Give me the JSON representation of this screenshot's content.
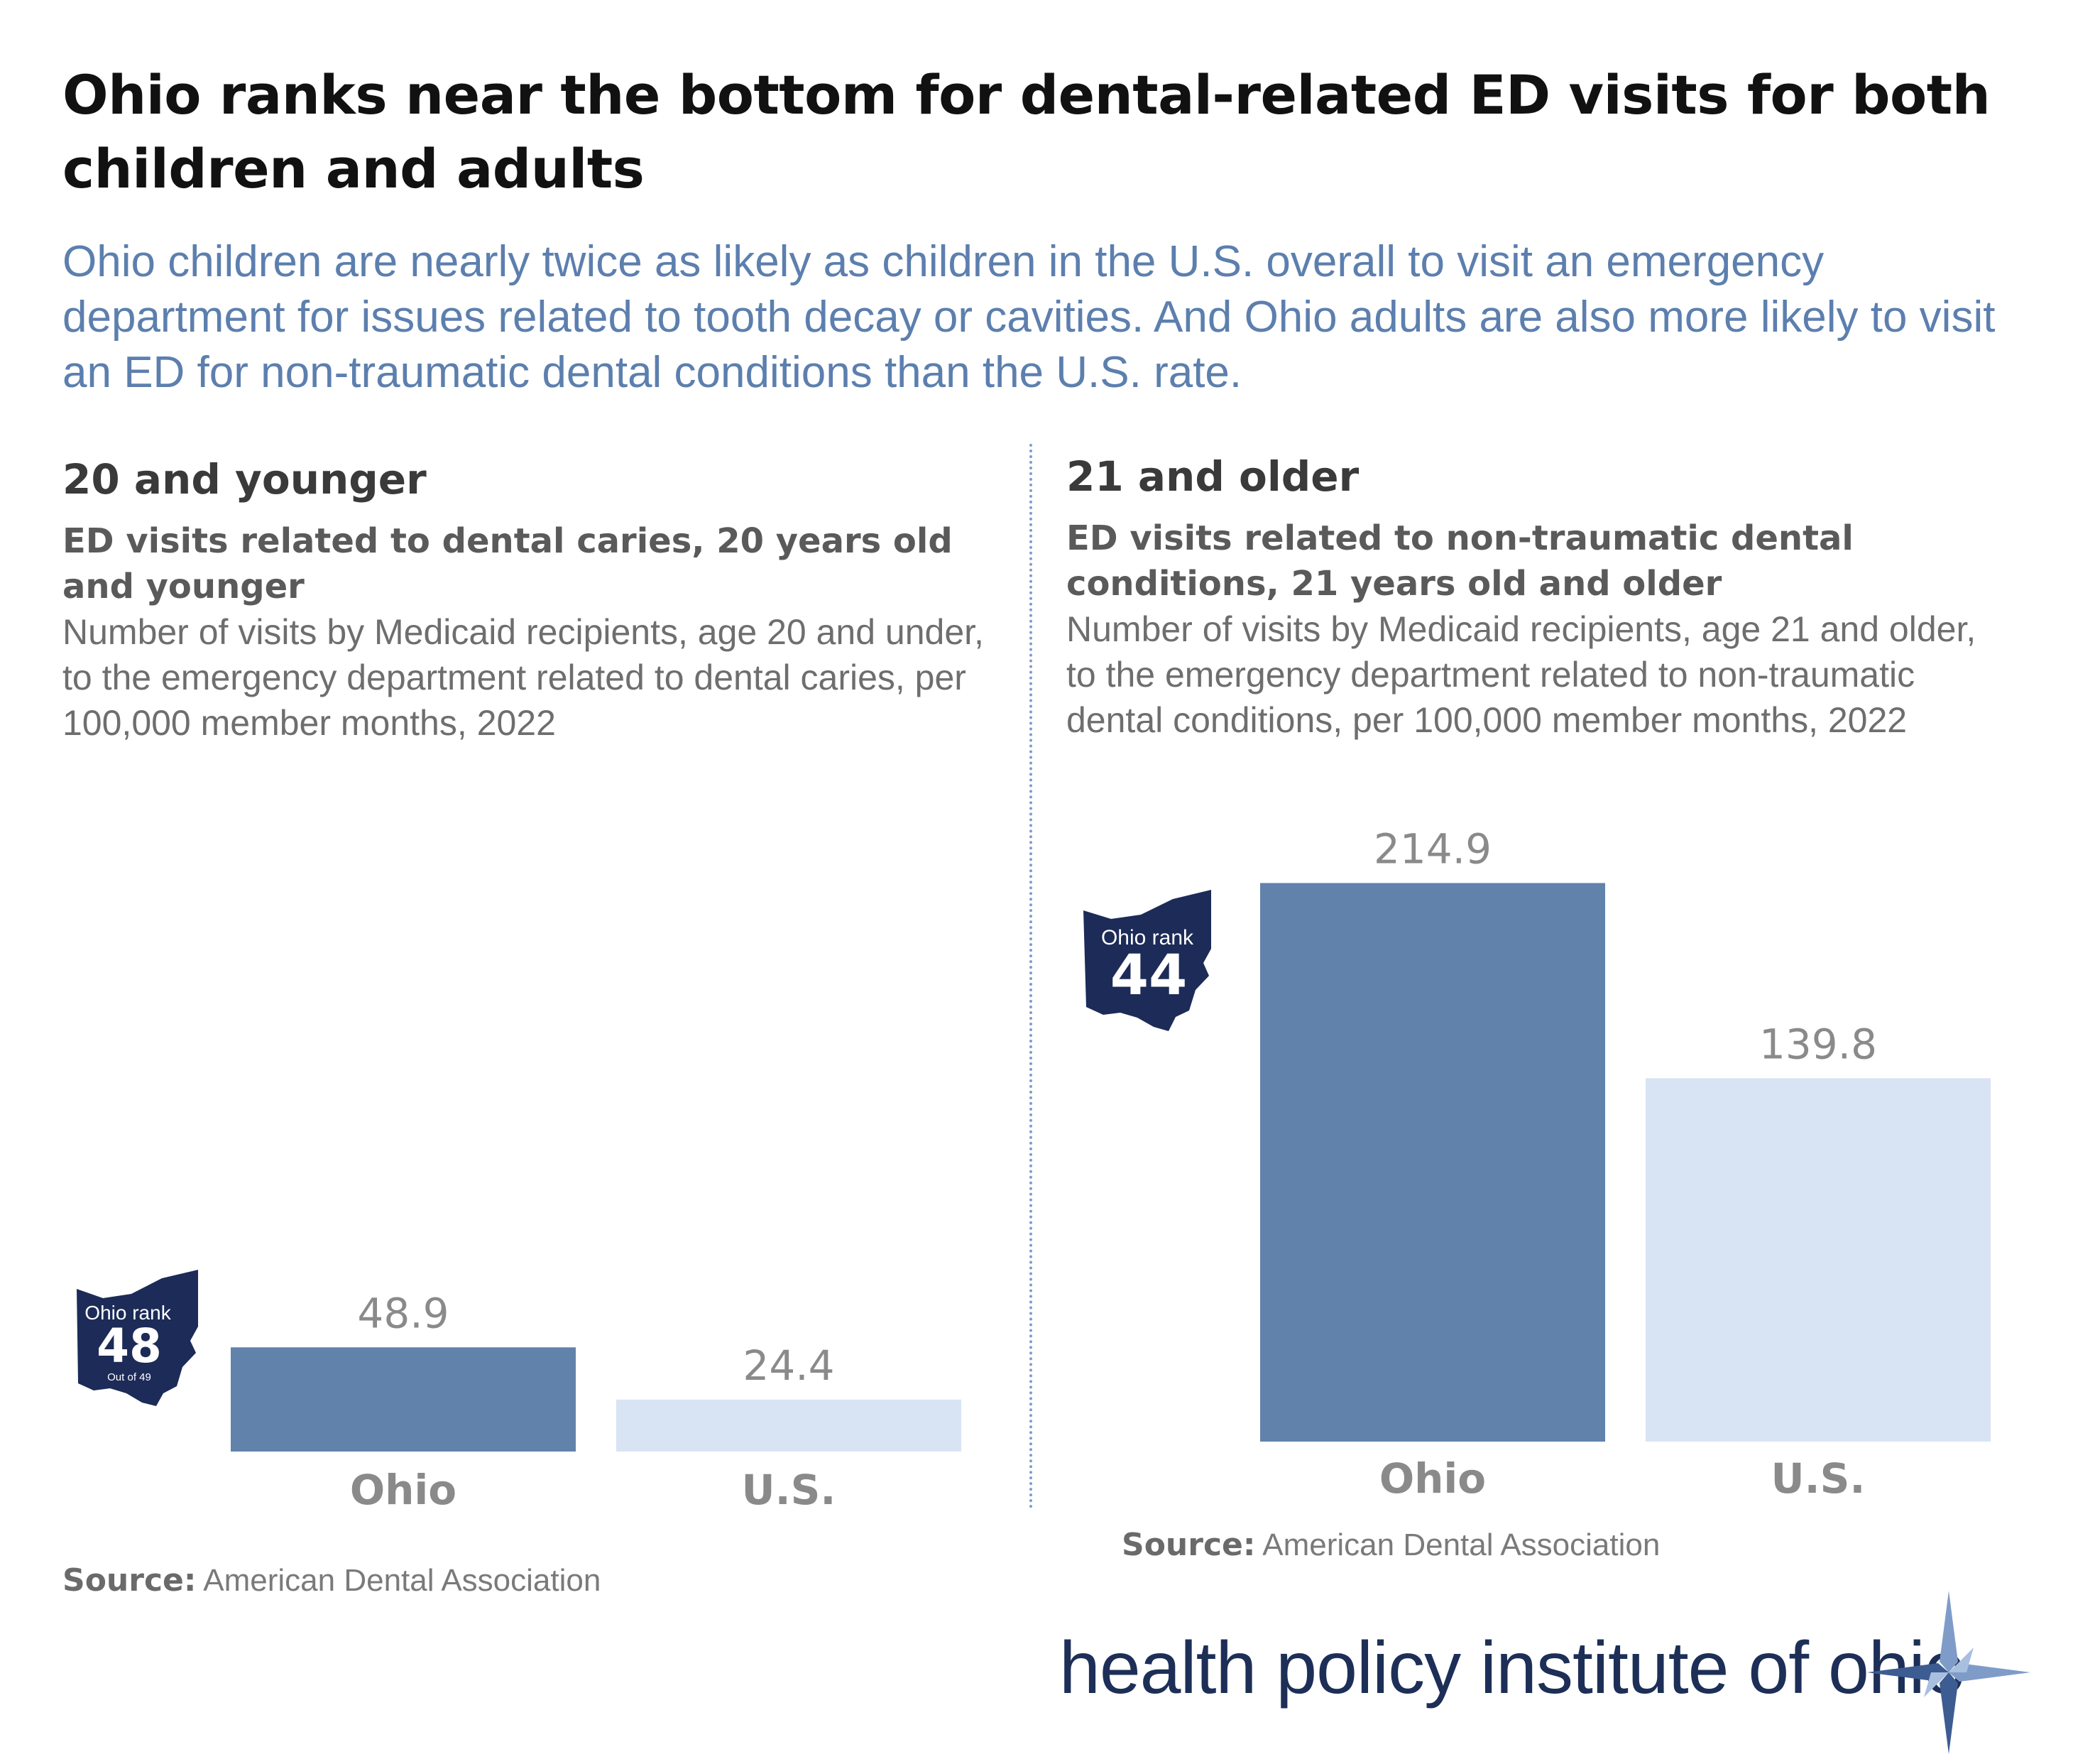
{
  "headline": "Ohio ranks near the bottom for dental-related ED visits for both children and adults",
  "subhead": "Ohio children are nearly twice as likely as children in the U.S. overall to visit an emergency department for issues related to tooth decay or cavities. And Ohio adults are also more likely to visit an ED for non-traumatic dental conditions than the U.S. rate.",
  "colors": {
    "ohio_bar": "#6182ab",
    "us_bar": "#d8e4f4",
    "badge": "#1c2b57",
    "subhead": "#5c7fae"
  },
  "panels": [
    {
      "title": "20 and younger",
      "metric_title": "ED visits related to dental caries, 20 years old and younger",
      "metric_desc": "Number of visits by Medicaid recipients, age 20 and under, to the emergency department related to dental caries, per 100,000 member months, 2022",
      "badge": {
        "label": "Ohio rank",
        "rank": "48",
        "out_of": "Out of 49"
      },
      "source_label": "Source:",
      "source_text": "American Dental Association"
    },
    {
      "title": "21 and older",
      "metric_title": "ED visits related to non-traumatic dental conditions, 21 years old and older",
      "metric_desc": "Number of visits by Medicaid recipients, age 21 and older, to the emergency department related to non-traumatic dental conditions, per 100,000 member months, 2022",
      "badge": {
        "label": "Ohio rank",
        "rank": "44"
      },
      "source_label": "Source:",
      "source_text": "American Dental Association"
    }
  ],
  "chart_data": [
    {
      "type": "bar",
      "title": "ED visits related to dental caries, 20 years old and younger",
      "categories": [
        "Ohio",
        "U.S."
      ],
      "values": [
        48.9,
        24.4
      ],
      "value_labels": [
        "48.9",
        "24.4"
      ],
      "grid": false
    },
    {
      "type": "bar",
      "title": "ED visits related to non-traumatic dental conditions, 21 years old and older",
      "categories": [
        "Ohio",
        "U.S."
      ],
      "values": [
        214.9,
        139.8
      ],
      "value_labels": [
        "214.9",
        "139.8"
      ],
      "grid": false
    }
  ],
  "logo": {
    "text": "health policy institute of ohio",
    "icon": "compass-star-icon"
  }
}
